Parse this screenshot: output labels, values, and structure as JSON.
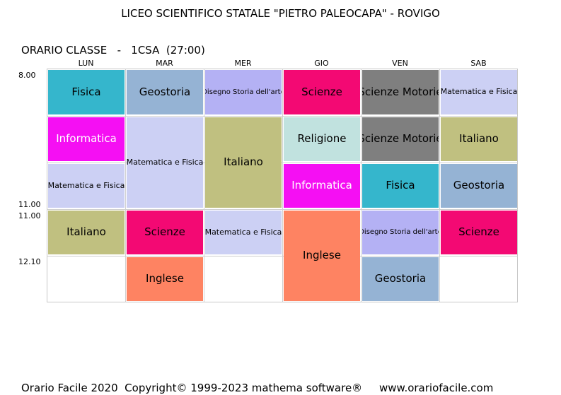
{
  "header": {
    "title": "LICEO SCIENTIFICO STATALE \"PIETRO PALEOCAPA\" - ROVIGO",
    "class_label": "ORARIO CLASSE   -   1CSA  (27:00)"
  },
  "days": [
    "LUN",
    "MAR",
    "MER",
    "GIO",
    "VEN",
    "SAB"
  ],
  "times": [
    "8.00",
    "11.00",
    "11.00",
    "12.10"
  ],
  "colors": {
    "Fisica": "#35b6cc",
    "Geostoria": "#95b3d4",
    "Disegno": "#b4b1f4",
    "Scienze": "#f30973",
    "Motorie": "#7f7f7f",
    "Matematica": "#ccd0f4",
    "Informatica": "#f50ff3",
    "Religione": "#c1e2df",
    "Italiano": "#c0c080",
    "Inglese": "#fe8362"
  },
  "schedule": [
    {
      "day": 0,
      "start": 1,
      "span": 1,
      "subject": "Fisica",
      "color": "#35b6cc"
    },
    {
      "day": 0,
      "start": 2,
      "span": 1,
      "subject": "Informatica",
      "color": "#f50ff3",
      "text_color": "#ffffff"
    },
    {
      "day": 0,
      "start": 3,
      "span": 1,
      "subject": "Matematica e Fisica",
      "color": "#ccd0f4",
      "small": true
    },
    {
      "day": 0,
      "start": 4,
      "span": 1,
      "subject": "Italiano",
      "color": "#c0c080"
    },
    {
      "day": 1,
      "start": 1,
      "span": 1,
      "subject": "Geostoria",
      "color": "#95b3d4"
    },
    {
      "day": 1,
      "start": 2,
      "span": 2,
      "subject": "Matematica e Fisica",
      "color": "#ccd0f4",
      "small": true
    },
    {
      "day": 1,
      "start": 4,
      "span": 1,
      "subject": "Scienze",
      "color": "#f30973"
    },
    {
      "day": 1,
      "start": 5,
      "span": 1,
      "subject": "Inglese",
      "color": "#fe8362"
    },
    {
      "day": 2,
      "start": 1,
      "span": 1,
      "subject": "Disegno Storia dell'arte",
      "color": "#b4b1f4",
      "xs": true
    },
    {
      "day": 2,
      "start": 2,
      "span": 2,
      "subject": "Italiano",
      "color": "#c0c080"
    },
    {
      "day": 2,
      "start": 4,
      "span": 1,
      "subject": "Matematica e Fisica",
      "color": "#ccd0f4",
      "small": true
    },
    {
      "day": 3,
      "start": 1,
      "span": 1,
      "subject": "Scienze",
      "color": "#f30973"
    },
    {
      "day": 3,
      "start": 2,
      "span": 1,
      "subject": "Religione",
      "color": "#c1e2df"
    },
    {
      "day": 3,
      "start": 3,
      "span": 1,
      "subject": "Informatica",
      "color": "#f50ff3",
      "text_color": "#ffffff"
    },
    {
      "day": 3,
      "start": 4,
      "span": 2,
      "subject": "Inglese",
      "color": "#fe8362"
    },
    {
      "day": 4,
      "start": 1,
      "span": 1,
      "subject": "Scienze  Motorie",
      "color": "#7f7f7f"
    },
    {
      "day": 4,
      "start": 2,
      "span": 1,
      "subject": "Scienze  Motorie",
      "color": "#7f7f7f"
    },
    {
      "day": 4,
      "start": 3,
      "span": 1,
      "subject": "Fisica",
      "color": "#35b6cc"
    },
    {
      "day": 4,
      "start": 4,
      "span": 1,
      "subject": "Disegno Storia dell'arte",
      "color": "#b4b1f4",
      "xs": true
    },
    {
      "day": 4,
      "start": 5,
      "span": 1,
      "subject": "Geostoria",
      "color": "#95b3d4"
    },
    {
      "day": 5,
      "start": 1,
      "span": 1,
      "subject": "Matematica e Fisica",
      "color": "#ccd0f4",
      "small": true
    },
    {
      "day": 5,
      "start": 2,
      "span": 1,
      "subject": "Italiano",
      "color": "#c0c080"
    },
    {
      "day": 5,
      "start": 3,
      "span": 1,
      "subject": "Geostoria",
      "color": "#95b3d4"
    },
    {
      "day": 5,
      "start": 4,
      "span": 1,
      "subject": "Scienze",
      "color": "#f30973"
    }
  ],
  "footer": {
    "text": "Orario Facile 2020  Copyright© 1999-2023 mathema software®     www.orariofacile.com"
  }
}
